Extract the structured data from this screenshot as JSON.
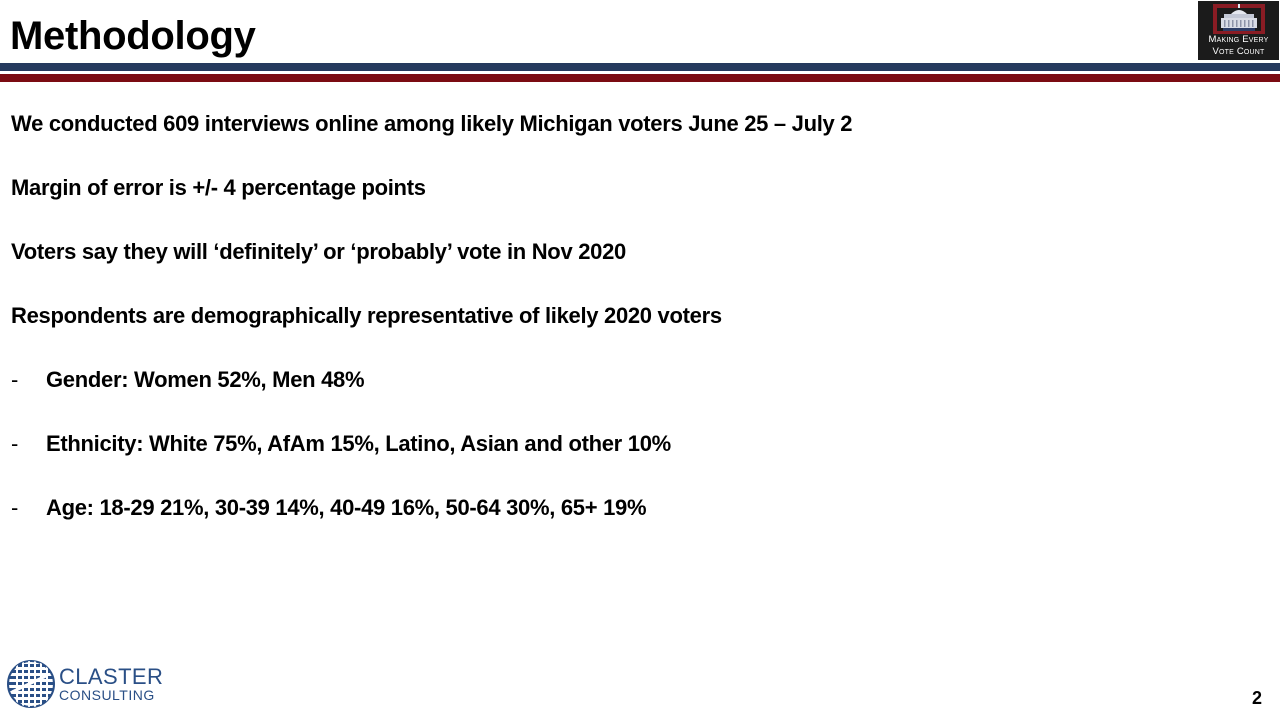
{
  "slide": {
    "title": "Methodology",
    "page_number": "2"
  },
  "logo_top_right": {
    "line1": "Making Every",
    "line2": "Vote Count"
  },
  "logo_bottom_left": {
    "line1": "CLASTER",
    "line2": "CONSULTING"
  },
  "content": {
    "lines": [
      "We conducted 609 interviews online among likely Michigan voters June 25 – July 2",
      "Margin of error is +/- 4 percentage points",
      "Voters say they will ‘definitely’ or ‘probably’ vote in Nov 2020",
      "Respondents are demographically representative of likely 2020 voters"
    ],
    "bullet_marker": "-",
    "bullets": [
      "Gender: Women 52%, Men 48%",
      "Ethnicity: White 75%, AfAm 15%, Latino, Asian and other 10%",
      "Age: 18-29 21%, 30-39 14%, 40-49 16%, 50-64 30%, 65+ 19%"
    ]
  },
  "colors": {
    "navy_rule": "#253a5e",
    "red_rule": "#7b0b12",
    "brand_blue": "#2a4f86"
  }
}
